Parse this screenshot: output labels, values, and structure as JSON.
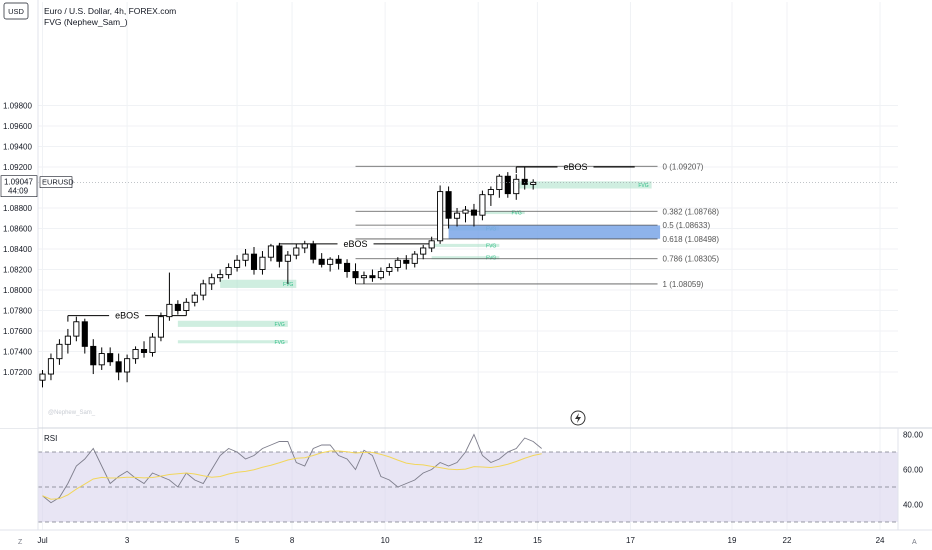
{
  "header": {
    "currency_badge": "USD",
    "title": "Euro / U.S. Dollar, 4h, FOREX.com",
    "indicator": "FVG (Nephew_Sam_)"
  },
  "price_axis": {
    "ticks": [
      "1.09800",
      "1.09600",
      "1.09400",
      "1.09200",
      "1.08800",
      "1.08600",
      "1.08400",
      "1.08200",
      "1.08000",
      "1.07800",
      "1.07600",
      "1.07400",
      "1.07200"
    ],
    "tick_values": [
      1.098,
      1.096,
      1.094,
      1.092,
      1.088,
      1.086,
      1.084,
      1.082,
      1.08,
      1.078,
      1.076,
      1.074,
      1.072
    ],
    "current_price": "1.09047",
    "current_value": 1.09047,
    "countdown": "44:09",
    "symbol_label": "EURUSD"
  },
  "time_axis": {
    "labels": [
      {
        "t": 0,
        "label": "Jul"
      },
      {
        "t": 10,
        "label": "3"
      },
      {
        "t": 23,
        "label": "5"
      },
      {
        "t": 29.5,
        "label": "8"
      },
      {
        "t": 40.5,
        "label": "10"
      },
      {
        "t": 51.5,
        "label": "12"
      },
      {
        "t": 58.5,
        "label": "15"
      },
      {
        "t": 69.5,
        "label": "17"
      },
      {
        "t": 81.5,
        "label": "19"
      },
      {
        "t": 88,
        "label": "22"
      },
      {
        "t": 99,
        "label": "24"
      }
    ]
  },
  "rsi": {
    "label": "RSI",
    "ticks": [
      "80.00",
      "60.00",
      "40.00"
    ],
    "tick_values": [
      80,
      60,
      40
    ],
    "upper": 70,
    "lower": 30,
    "mid": 50,
    "values": [
      45,
      41,
      44,
      52,
      62,
      66,
      72,
      62,
      52,
      56,
      59,
      55,
      52,
      58,
      56,
      54,
      50,
      58,
      54,
      52,
      60,
      68,
      72,
      70,
      66,
      68,
      72,
      74,
      76,
      76,
      64,
      62,
      72,
      74,
      74,
      68,
      66,
      60,
      71,
      68,
      56,
      54,
      50,
      52,
      54,
      58,
      60,
      64,
      62,
      64,
      70,
      80,
      68,
      64,
      66,
      70,
      72,
      78,
      76,
      72
    ]
  },
  "chart_data": {
    "type": "candlestick",
    "title": "Euro / U.S. Dollar, 4h, FOREX.com",
    "candles": [
      {
        "o": 1.0712,
        "h": 1.0722,
        "l": 1.0705,
        "c": 1.0718
      },
      {
        "o": 1.0718,
        "h": 1.0738,
        "l": 1.0712,
        "c": 1.0733
      },
      {
        "o": 1.0733,
        "h": 1.0752,
        "l": 1.0727,
        "c": 1.0747
      },
      {
        "o": 1.0747,
        "h": 1.0762,
        "l": 1.0738,
        "c": 1.0755
      },
      {
        "o": 1.0755,
        "h": 1.0774,
        "l": 1.075,
        "c": 1.0769
      },
      {
        "o": 1.0769,
        "h": 1.0772,
        "l": 1.0738,
        "c": 1.0745
      },
      {
        "o": 1.0745,
        "h": 1.0752,
        "l": 1.0718,
        "c": 1.0727
      },
      {
        "o": 1.0727,
        "h": 1.0744,
        "l": 1.0722,
        "c": 1.0738
      },
      {
        "o": 1.0738,
        "h": 1.0744,
        "l": 1.0726,
        "c": 1.073
      },
      {
        "o": 1.073,
        "h": 1.0738,
        "l": 1.0712,
        "c": 1.072
      },
      {
        "o": 1.072,
        "h": 1.0737,
        "l": 1.071,
        "c": 1.0733
      },
      {
        "o": 1.0733,
        "h": 1.0745,
        "l": 1.0728,
        "c": 1.0742
      },
      {
        "o": 1.0742,
        "h": 1.075,
        "l": 1.0734,
        "c": 1.0739
      },
      {
        "o": 1.0739,
        "h": 1.0758,
        "l": 1.0735,
        "c": 1.0754
      },
      {
        "o": 1.0754,
        "h": 1.0778,
        "l": 1.075,
        "c": 1.0774
      },
      {
        "o": 1.0774,
        "h": 1.0817,
        "l": 1.077,
        "c": 1.0786
      },
      {
        "o": 1.0786,
        "h": 1.079,
        "l": 1.0776,
        "c": 1.078
      },
      {
        "o": 1.078,
        "h": 1.0792,
        "l": 1.0775,
        "c": 1.0788
      },
      {
        "o": 1.0788,
        "h": 1.0798,
        "l": 1.0784,
        "c": 1.0795
      },
      {
        "o": 1.0795,
        "h": 1.081,
        "l": 1.079,
        "c": 1.0806
      },
      {
        "o": 1.0806,
        "h": 1.0816,
        "l": 1.08,
        "c": 1.0812
      },
      {
        "o": 1.0812,
        "h": 1.082,
        "l": 1.0808,
        "c": 1.0815
      },
      {
        "o": 1.0815,
        "h": 1.0826,
        "l": 1.0811,
        "c": 1.0822
      },
      {
        "o": 1.0822,
        "h": 1.0834,
        "l": 1.0818,
        "c": 1.0829
      },
      {
        "o": 1.0829,
        "h": 1.084,
        "l": 1.0823,
        "c": 1.0835
      },
      {
        "o": 1.0835,
        "h": 1.0842,
        "l": 1.0815,
        "c": 1.082
      },
      {
        "o": 1.082,
        "h": 1.0838,
        "l": 1.0815,
        "c": 1.0832
      },
      {
        "o": 1.0832,
        "h": 1.0845,
        "l": 1.0828,
        "c": 1.0843
      },
      {
        "o": 1.0843,
        "h": 1.0846,
        "l": 1.0822,
        "c": 1.0828
      },
      {
        "o": 1.0828,
        "h": 1.0838,
        "l": 1.0806,
        "c": 1.0834
      },
      {
        "o": 1.0834,
        "h": 1.0845,
        "l": 1.083,
        "c": 1.0841
      },
      {
        "o": 1.0841,
        "h": 1.0848,
        "l": 1.0836,
        "c": 1.0845
      },
      {
        "o": 1.0845,
        "h": 1.0848,
        "l": 1.0826,
        "c": 1.083
      },
      {
        "o": 1.083,
        "h": 1.0836,
        "l": 1.0822,
        "c": 1.0825
      },
      {
        "o": 1.0825,
        "h": 1.0832,
        "l": 1.0818,
        "c": 1.083
      },
      {
        "o": 1.083,
        "h": 1.0834,
        "l": 1.082,
        "c": 1.0826
      },
      {
        "o": 1.0826,
        "h": 1.083,
        "l": 1.0812,
        "c": 1.0818
      },
      {
        "o": 1.0818,
        "h": 1.0826,
        "l": 1.0806,
        "c": 1.0812
      },
      {
        "o": 1.0812,
        "h": 1.0818,
        "l": 1.0806,
        "c": 1.0814
      },
      {
        "o": 1.0814,
        "h": 1.082,
        "l": 1.0808,
        "c": 1.0812
      },
      {
        "o": 1.0812,
        "h": 1.0822,
        "l": 1.081,
        "c": 1.0818
      },
      {
        "o": 1.0818,
        "h": 1.0826,
        "l": 1.0814,
        "c": 1.0822
      },
      {
        "o": 1.0822,
        "h": 1.0832,
        "l": 1.0818,
        "c": 1.0829
      },
      {
        "o": 1.0829,
        "h": 1.0834,
        "l": 1.082,
        "c": 1.0826
      },
      {
        "o": 1.0826,
        "h": 1.0838,
        "l": 1.0822,
        "c": 1.0835
      },
      {
        "o": 1.0835,
        "h": 1.0844,
        "l": 1.083,
        "c": 1.0841
      },
      {
        "o": 1.0841,
        "h": 1.0852,
        "l": 1.0837,
        "c": 1.0848
      },
      {
        "o": 1.0848,
        "h": 1.0902,
        "l": 1.0845,
        "c": 1.0896
      },
      {
        "o": 1.0896,
        "h": 1.0901,
        "l": 1.086,
        "c": 1.087
      },
      {
        "o": 1.087,
        "h": 1.088,
        "l": 1.0862,
        "c": 1.0875
      },
      {
        "o": 1.0875,
        "h": 1.0882,
        "l": 1.0866,
        "c": 1.0878
      },
      {
        "o": 1.0878,
        "h": 1.0884,
        "l": 1.0862,
        "c": 1.0873
      },
      {
        "o": 1.0873,
        "h": 1.0897,
        "l": 1.0868,
        "c": 1.0893
      },
      {
        "o": 1.0893,
        "h": 1.0901,
        "l": 1.0882,
        "c": 1.0898
      },
      {
        "o": 1.0898,
        "h": 1.0913,
        "l": 1.089,
        "c": 1.0911
      },
      {
        "o": 1.0911,
        "h": 1.0915,
        "l": 1.089,
        "c": 1.0894
      },
      {
        "o": 1.0894,
        "h": 1.0913,
        "l": 1.0888,
        "c": 1.0908
      },
      {
        "o": 1.0908,
        "h": 1.092,
        "l": 1.0898,
        "c": 1.0903
      },
      {
        "o": 1.0903,
        "h": 1.0908,
        "l": 1.0898,
        "c": 1.0905
      }
    ],
    "ebos": [
      {
        "label": "eBOS",
        "price": 1.0775,
        "from": 3,
        "to": 17
      },
      {
        "label": "eBOS",
        "price": 1.0845,
        "from": 28,
        "to": 46
      },
      {
        "label": "eBOS",
        "price": 1.092,
        "from": 56,
        "to": 70
      }
    ],
    "fvg_zones": [
      {
        "label": "FVG",
        "top": 1.081,
        "bottom": 1.0802,
        "from": 21,
        "to": 30
      },
      {
        "label": "FVG",
        "top": 1.077,
        "bottom": 1.0764,
        "from": 16,
        "to": 29
      },
      {
        "label": "FVG",
        "top": 1.0751,
        "bottom": 1.0748,
        "from": 16,
        "to": 29
      },
      {
        "label": "FVG",
        "top": 1.0906,
        "bottom": 1.0899,
        "from": 56,
        "to": 72
      },
      {
        "label": "FVG",
        "top": 1.0877,
        "bottom": 1.0876,
        "from": 52,
        "to": 57
      },
      {
        "label": "FVG",
        "top": 1.0845,
        "bottom": 1.0842,
        "from": 46,
        "to": 54
      },
      {
        "label": "FVG",
        "top": 1.0833,
        "bottom": 1.083,
        "from": 46,
        "to": 54
      },
      {
        "label": "FVG",
        "top": 1.0862,
        "bottom": 1.0858,
        "from": 48,
        "to": 54
      }
    ],
    "golden_zone": {
      "top": 1.0863,
      "bottom": 1.085,
      "from": 48,
      "to": 73
    },
    "fib_levels": [
      {
        "label": "0 (1.09207)",
        "value": 1.09207
      },
      {
        "label": "0.382 (1.08768)",
        "value": 1.08768
      },
      {
        "label": "0.5 (1.08633)",
        "value": 1.08633
      },
      {
        "label": "0.618 (1.08498)",
        "value": 1.08498
      },
      {
        "label": "0.786 (1.08305)",
        "value": 1.08305
      },
      {
        "label": "1 (1.08059)",
        "value": 1.08059
      }
    ],
    "fib_from": 37,
    "colors": {
      "bull_fill": "#ffffff",
      "bear_fill": "#000000",
      "fvg": "#a7e0c7",
      "fvg_label": "#2ebd85",
      "golden": "#7aa6e8",
      "rsi_line": "#7e7e8c",
      "rsi_ma": "#f2d65b",
      "rsi_band": "#d9d4ec"
    }
  },
  "axis_controls": {
    "left": "Z",
    "right": "A"
  },
  "watermark": "@Nephew_Sam_"
}
